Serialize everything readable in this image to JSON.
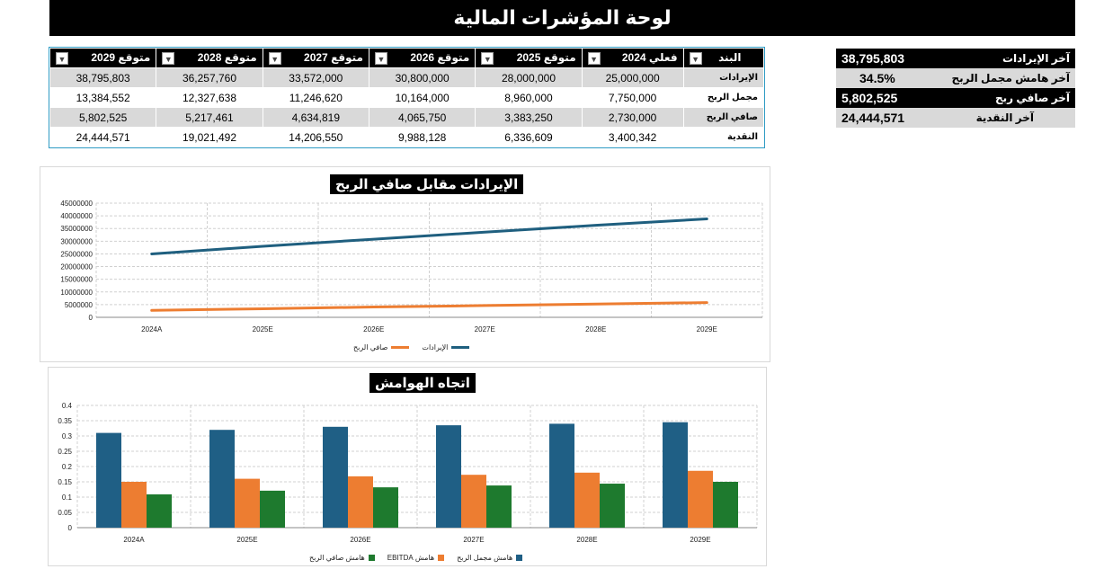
{
  "title": "لوحة المؤشرات المالية",
  "table": {
    "headers": [
      "متوقع 2029",
      "متوقع 2028",
      "متوقع 2027",
      "متوقع 2026",
      "متوقع 2025",
      "فعلي 2024",
      "البند"
    ],
    "rows": [
      {
        "label": "الإيرادات",
        "values": [
          "38,795,803",
          "36,257,760",
          "33,572,000",
          "30,800,000",
          "28,000,000",
          "25,000,000"
        ]
      },
      {
        "label": "مجمل الربح",
        "values": [
          "13,384,552",
          "12,327,638",
          "11,246,620",
          "10,164,000",
          "8,960,000",
          "7,750,000"
        ]
      },
      {
        "label": "صافي الربح",
        "values": [
          "5,802,525",
          "5,217,461",
          "4,634,819",
          "4,065,750",
          "3,383,250",
          "2,730,000"
        ]
      },
      {
        "label": "النقدية",
        "values": [
          "24,444,571",
          "19,021,492",
          "14,206,550",
          "9,988,128",
          "6,336,609",
          "3,400,342"
        ]
      }
    ]
  },
  "kpis": [
    {
      "label": "آخر الإيرادات",
      "value": "38,795,803"
    },
    {
      "label": "آخر هامش مجمل الربح",
      "value": "34.5%"
    },
    {
      "label": "آخر صافي ربح",
      "value": "5,802,525"
    },
    {
      "label": "آخر النقدية",
      "value": "24,444,571"
    }
  ],
  "colors": {
    "revenue": "#1f5f7f",
    "net_profit": "#ed7d31",
    "gross_margin": "#1f5f85",
    "ebitda_margin": "#ed7d31",
    "net_margin": "#1e7a2e"
  },
  "chart_data": [
    {
      "type": "line",
      "title": "الإيرادات مقابل صافي الربح",
      "categories": [
        "2024A",
        "2025E",
        "2026E",
        "2027E",
        "2028E",
        "2029E"
      ],
      "ylim": [
        0,
        45000000
      ],
      "yticks": [
        "0",
        "5000000",
        "10000000",
        "15000000",
        "20000000",
        "25000000",
        "30000000",
        "35000000",
        "40000000",
        "45000000"
      ],
      "series": [
        {
          "name": "الإيرادات",
          "values": [
            25000000,
            28000000,
            30800000,
            33572000,
            36257760,
            38795803
          ]
        },
        {
          "name": "صافي الربح",
          "values": [
            2730000,
            3383250,
            4065750,
            4634819,
            5217461,
            5802525
          ]
        }
      ],
      "legend": "bottom"
    },
    {
      "type": "bar",
      "title": "اتجاه الهوامش",
      "categories": [
        "2024A",
        "2025E",
        "2026E",
        "2027E",
        "2028E",
        "2029E"
      ],
      "ylim": [
        0,
        0.4
      ],
      "yticks": [
        "0",
        "0.05",
        "0.1",
        "0.15",
        "0.2",
        "0.25",
        "0.3",
        "0.35",
        "0.4"
      ],
      "series": [
        {
          "name": "هامش مجمل الربح",
          "values": [
            0.31,
            0.32,
            0.33,
            0.335,
            0.34,
            0.345
          ]
        },
        {
          "name": "هامش EBITDA",
          "values": [
            0.15,
            0.16,
            0.168,
            0.173,
            0.18,
            0.186
          ]
        },
        {
          "name": "هامش صافي الربح",
          "values": [
            0.109,
            0.121,
            0.132,
            0.138,
            0.144,
            0.15
          ]
        }
      ],
      "legend": "bottom"
    }
  ]
}
